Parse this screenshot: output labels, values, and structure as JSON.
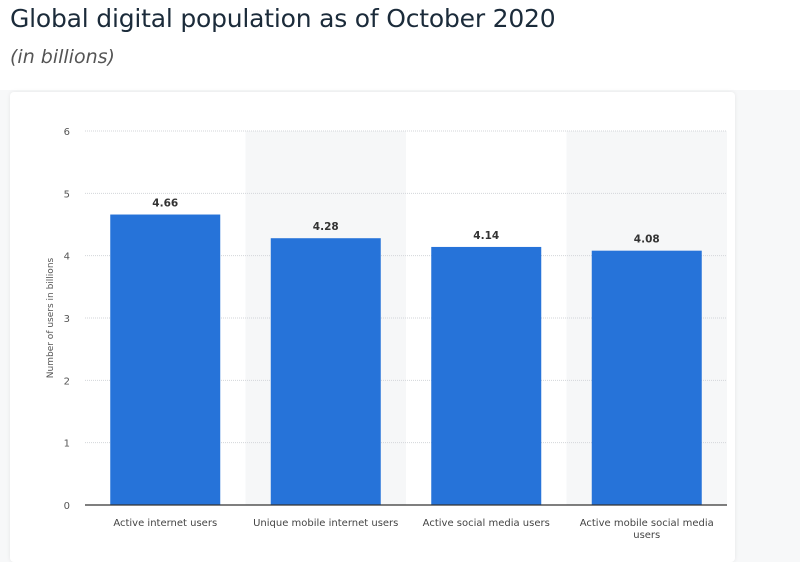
{
  "title": "Global digital population as of October 2020",
  "subtitle": "(in billions)",
  "chart_data": {
    "type": "bar",
    "title": "Global digital population as of October 2020",
    "subtitle": "(in billions)",
    "categories": [
      "Active internet users",
      "Unique mobile internet users",
      "Active social media users",
      "Active mobile social media users"
    ],
    "category_lines": [
      [
        "Active internet users"
      ],
      [
        "Unique mobile internet users"
      ],
      [
        "Active social media users"
      ],
      [
        "Active mobile social media",
        "users"
      ]
    ],
    "values": [
      4.66,
      4.28,
      4.14,
      4.08
    ],
    "data_labels": [
      "4.66",
      "4.28",
      "4.14",
      "4.08"
    ],
    "xlabel": "",
    "ylabel": "Number of users in billions",
    "ylim": [
      0,
      6
    ],
    "yticks": [
      0,
      1,
      2,
      3,
      4,
      5,
      6
    ],
    "grid": true,
    "bar_color": "#2673d9"
  }
}
